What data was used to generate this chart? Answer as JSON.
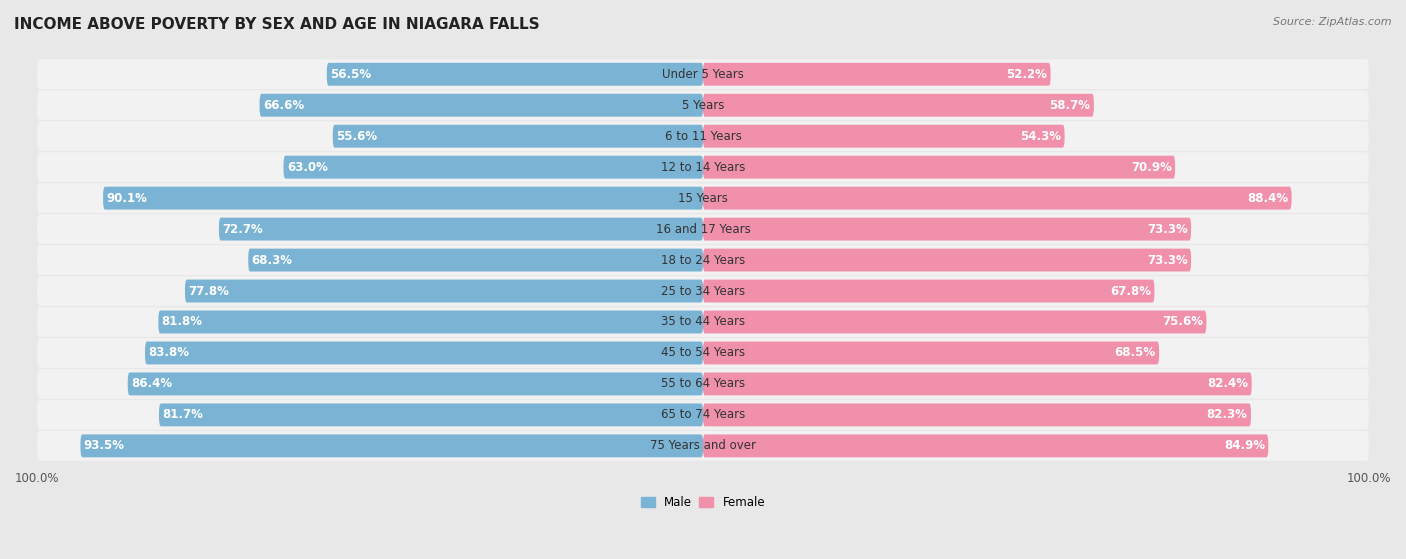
{
  "title": "INCOME ABOVE POVERTY BY SEX AND AGE IN NIAGARA FALLS",
  "source": "Source: ZipAtlas.com",
  "categories": [
    "Under 5 Years",
    "5 Years",
    "6 to 11 Years",
    "12 to 14 Years",
    "15 Years",
    "16 and 17 Years",
    "18 to 24 Years",
    "25 to 34 Years",
    "35 to 44 Years",
    "45 to 54 Years",
    "55 to 64 Years",
    "65 to 74 Years",
    "75 Years and over"
  ],
  "male_values": [
    56.5,
    66.6,
    55.6,
    63.0,
    90.1,
    72.7,
    68.3,
    77.8,
    81.8,
    83.8,
    86.4,
    81.7,
    93.5
  ],
  "female_values": [
    52.2,
    58.7,
    54.3,
    70.9,
    88.4,
    73.3,
    73.3,
    67.8,
    75.6,
    68.5,
    82.4,
    82.3,
    84.9
  ],
  "male_color": "#7ab3d4",
  "female_color": "#f090ab",
  "male_label": "Male",
  "female_label": "Female",
  "bg_color": "#e8e8e8",
  "row_bg_color": "#f2f2f2",
  "axis_max": 100.0,
  "bar_height": 0.72,
  "title_fontsize": 11,
  "label_fontsize": 8.5,
  "tick_fontsize": 8.5,
  "source_fontsize": 8
}
